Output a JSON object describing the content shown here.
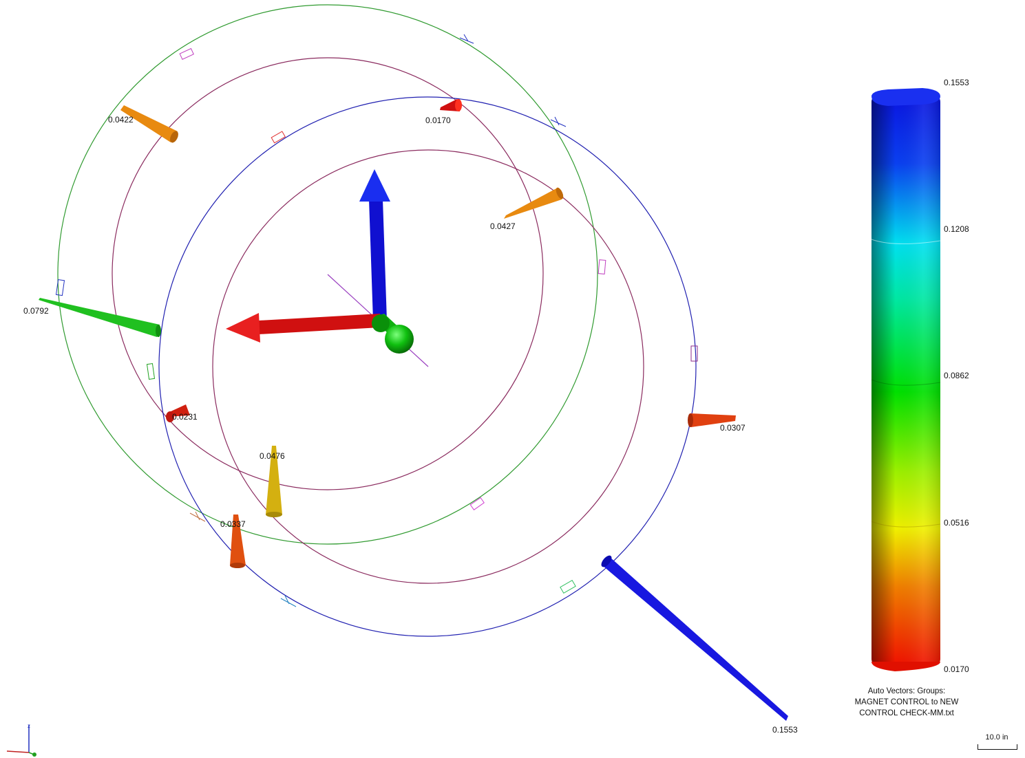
{
  "vector_labels": {
    "v1": "0.0422",
    "v2": "0.0170",
    "v3": "0.0427",
    "v4": "0.0792",
    "v5": "0.0231",
    "v6": "0.0476",
    "v7": "0.0337",
    "v8": "0.0307",
    "v9": "0.1553"
  },
  "legend": {
    "ticks": [
      "0.1553",
      "0.1208",
      "0.0862",
      "0.0516",
      "0.0170"
    ],
    "colors": [
      "#0a14e0",
      "#00d8f0",
      "#00e000",
      "#e8f000",
      "#f01000"
    ],
    "caption": [
      "Auto Vectors: Groups:",
      "MAGNET CONTROL to NEW",
      "CONTROL CHECK-MM.txt"
    ]
  },
  "scale_bar": {
    "label": "10.0 in"
  },
  "colors": {
    "outer_circle": "#2f9a2f",
    "middle_circle": "#8a2a5e",
    "blue_circle": "#1f1fb0",
    "axis_x": "#e01010",
    "axis_y": "#1010e0",
    "axis_z": "#10c010"
  }
}
